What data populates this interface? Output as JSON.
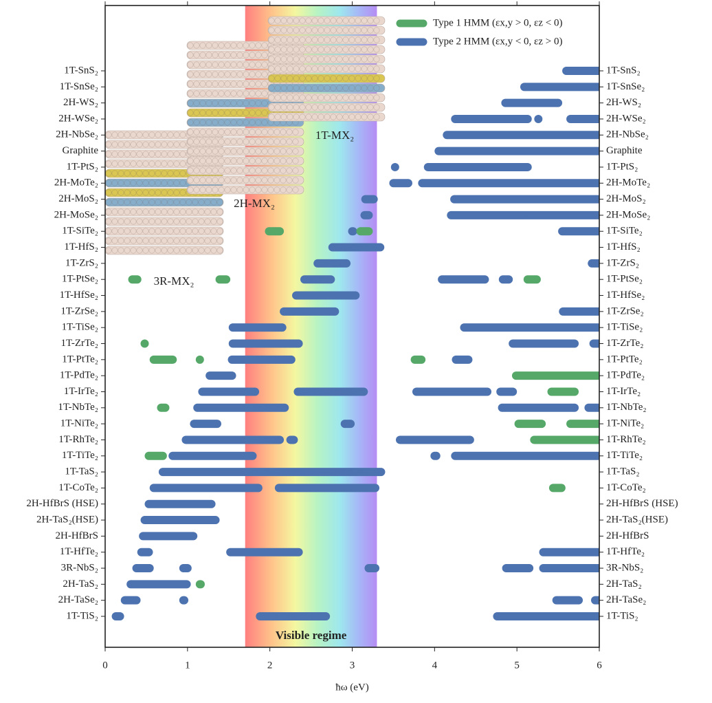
{
  "chart_data": {
    "type": "range-bar",
    "xlabel": "ħω (eV)",
    "xlim": [
      0,
      6
    ],
    "xticks": [
      0,
      1,
      2,
      3,
      4,
      5,
      6
    ],
    "categories": [
      "1T-SnS₂",
      "1T-SnSe₂",
      "2H-WS₂",
      "2H-WSe₂",
      "2H-NbSe₂",
      "Graphite",
      "1T-PtS₂",
      "2H-MoTe₂",
      "2H-MoS₂",
      "2H-MoSe₂",
      "1T-SiTe₂",
      "1T-HfS₂",
      "1T-ZrS₂",
      "1T-PtSe₂",
      "1T-HfSe₂",
      "1T-ZrSe₂",
      "1T-TiSe₂",
      "1T-ZrTe₂",
      "1T-PtTe₂",
      "1T-PdTe₂",
      "1T-IrTe₂",
      "1T-NbTe₂",
      "1T-NiTe₂",
      "1T-RhTe₂",
      "1T-TiTe₂",
      "1T-TaS₂",
      "1T-CoTe₂",
      "2H-HfBrS (HSE)",
      "2H-TaS₂(HSE)",
      "2H-HfBrS",
      "1T-HfTe₂",
      "3R-NbS₂",
      "2H-TaS₂",
      "2H-TaSe₂",
      "1T-TiS₂"
    ],
    "visible_regime": {
      "range": [
        1.7,
        3.3
      ],
      "label": "Visible regime"
    },
    "structures": [
      "1T-MX₂",
      "2H-MX₂",
      "3R-MX₂"
    ],
    "legend": "upper right",
    "series": [
      {
        "name": "Type 1 HMM (εx,y > 0, εz < 0)",
        "color": "#55a868",
        "values": [
          [],
          [],
          [],
          [],
          [],
          [],
          [],
          [],
          [],
          [],
          [
            [
              1.94,
              2.17
            ],
            [
              3.05,
              3.25
            ]
          ],
          [],
          [],
          [
            [
              0.28,
              0.44
            ],
            [
              1.34,
              1.52
            ],
            [
              5.08,
              5.29
            ]
          ],
          [],
          [],
          [],
          [
            [
              0.43,
              0.53
            ]
          ],
          [
            [
              0.54,
              0.87
            ],
            [
              1.1,
              1.2
            ],
            [
              3.71,
              3.89
            ]
          ],
          [
            [
              4.94,
              6.0
            ]
          ],
          [
            [
              5.37,
              5.75
            ]
          ],
          [
            [
              0.63,
              0.78
            ]
          ],
          [
            [
              4.97,
              5.35
            ],
            [
              5.6,
              6.0
            ]
          ],
          [
            [
              5.16,
              6.0
            ]
          ],
          [
            [
              0.48,
              0.75
            ]
          ],
          [],
          [
            [
              5.39,
              5.59
            ]
          ],
          [],
          [],
          [],
          [],
          [],
          [
            [
              1.1,
              1.21
            ]
          ],
          [],
          []
        ]
      },
      {
        "name": "Type 2 HMM (εx,y < 0, εz > 0)",
        "color": "#4c72b0",
        "values": [
          [
            [
              5.55,
              6.0
            ]
          ],
          [
            [
              5.04,
              6.0
            ]
          ],
          [
            [
              4.81,
              5.55
            ]
          ],
          [
            [
              4.2,
              5.18
            ],
            [
              5.22,
              5.3
            ],
            [
              5.6,
              6.0
            ]
          ],
          [
            [
              4.1,
              6.0
            ]
          ],
          [
            [
              4.0,
              6.0
            ]
          ],
          [
            [
              3.47,
              3.57
            ],
            [
              3.87,
              5.18
            ]
          ],
          [
            [
              3.45,
              3.73
            ],
            [
              3.8,
              6.0
            ]
          ],
          [
            [
              3.11,
              3.31
            ],
            [
              4.19,
              6.0
            ]
          ],
          [
            [
              3.1,
              3.25
            ],
            [
              4.15,
              6.0
            ]
          ],
          [
            [
              2.95,
              3.06
            ],
            [
              5.5,
              6.0
            ]
          ],
          [
            [
              2.71,
              3.39
            ]
          ],
          [
            [
              2.53,
              2.98
            ],
            [
              5.86,
              6.0
            ]
          ],
          [
            [
              2.37,
              2.79
            ],
            [
              4.04,
              4.66
            ],
            [
              4.78,
              4.95
            ]
          ],
          [
            [
              2.27,
              3.09
            ]
          ],
          [
            [
              2.12,
              2.84
            ],
            [
              5.51,
              6.0
            ]
          ],
          [
            [
              1.5,
              2.2
            ],
            [
              4.31,
              6.0
            ]
          ],
          [
            [
              1.5,
              2.4
            ],
            [
              4.9,
              5.75
            ],
            [
              5.88,
              6.0
            ]
          ],
          [
            [
              1.49,
              2.31
            ],
            [
              4.21,
              4.46
            ]
          ],
          [
            [
              1.22,
              1.59
            ]
          ],
          [
            [
              1.13,
              1.87
            ],
            [
              2.29,
              3.19
            ],
            [
              3.73,
              4.69
            ],
            [
              4.75,
              5.0
            ]
          ],
          [
            [
              1.07,
              2.23
            ],
            [
              4.77,
              5.75
            ],
            [
              5.82,
              6.0
            ]
          ],
          [
            [
              1.03,
              1.41
            ],
            [
              2.86,
              3.03
            ]
          ],
          [
            [
              0.93,
              2.17
            ],
            [
              2.2,
              2.34
            ],
            [
              3.53,
              4.48
            ]
          ],
          [
            [
              0.77,
              1.84
            ],
            [
              3.95,
              4.07
            ],
            [
              4.2,
              6.0
            ]
          ],
          [
            [
              0.65,
              3.4
            ]
          ],
          [
            [
              0.54,
              1.91
            ],
            [
              2.06,
              3.33
            ]
          ],
          [
            [
              0.48,
              1.34
            ]
          ],
          [
            [
              0.43,
              1.39
            ]
          ],
          [
            [
              0.41,
              1.12
            ]
          ],
          [
            [
              0.39,
              0.58
            ],
            [
              1.47,
              2.4
            ],
            [
              5.27,
              6.0
            ]
          ],
          [
            [
              0.33,
              0.59
            ],
            [
              0.9,
              1.05
            ],
            [
              3.15,
              3.33
            ],
            [
              4.82,
              5.2
            ],
            [
              5.27,
              6.0
            ]
          ],
          [
            [
              0.26,
              1.04
            ]
          ],
          [
            [
              0.19,
              0.43
            ],
            [
              0.9,
              1.01
            ],
            [
              5.43,
              5.8
            ],
            [
              5.9,
              6.0
            ]
          ],
          [
            [
              0.08,
              0.23
            ],
            [
              1.83,
              2.73
            ],
            [
              4.71,
              6.0
            ]
          ]
        ]
      }
    ]
  }
}
